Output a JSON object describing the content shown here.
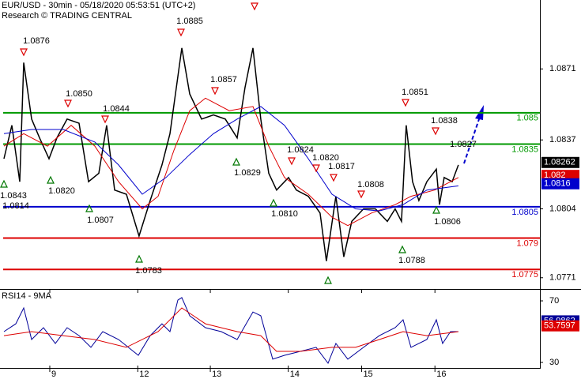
{
  "chart_data": [
    {
      "type": "line",
      "title": "EUR/USD - 30min - 05/18/2020 05:53:51 (UTC+2)",
      "subtitle": "Research © TRADING CENTRAL",
      "xlim": [
        0.355,
        7.35
      ],
      "ylim": [
        1.0766,
        1.0904
      ],
      "yticks": [
        1.0871,
        1.0837,
        1.0804,
        1.0771
      ],
      "series": [
        {
          "color": "#000000",
          "last_value": 1.08262,
          "x": [
            0.406,
            0.509,
            0.611,
            0.662,
            0.765,
            0.867,
            0.99,
            1.092,
            1.225,
            1.379,
            1.502,
            1.635,
            1.737,
            1.84,
            1.993,
            2.157,
            2.301,
            2.454,
            2.557,
            2.711,
            2.813,
            2.967,
            3.12,
            3.274,
            3.427,
            3.529,
            3.632,
            3.734,
            3.837,
            3.939,
            4.093,
            4.195,
            4.349,
            4.502,
            4.584,
            4.707,
            4.809,
            4.912,
            5.065,
            5.219,
            5.373,
            5.475,
            5.557,
            5.618,
            5.7,
            5.782,
            5.885,
            6.008,
            6.049,
            6.11,
            6.213,
            6.294
          ],
          "values": [
            1.0828,
            1.0844,
            1.0817,
            1.0874,
            1.0847,
            1.0838,
            1.0828,
            1.0838,
            1.0847,
            1.0845,
            1.0817,
            1.0821,
            1.0844,
            1.0813,
            1.0811,
            1.0791,
            1.0808,
            1.0825,
            1.084,
            1.0881,
            1.0859,
            1.0847,
            1.0849,
            1.0847,
            1.0838,
            1.0862,
            1.0881,
            1.0847,
            1.0821,
            1.0813,
            1.0819,
            1.0813,
            1.081,
            1.0802,
            1.0779,
            1.081,
            1.0781,
            1.0798,
            1.0804,
            1.0804,
            1.0798,
            1.0804,
            1.0798,
            1.0844,
            1.0817,
            1.0808,
            1.0817,
            1.0823,
            1.0806,
            1.0819,
            1.0817,
            1.0825
          ]
        },
        {
          "color": "#dd0000",
          "last_value": 1.082,
          "x": [
            0.406,
            0.662,
            0.969,
            1.277,
            1.584,
            1.891,
            2.198,
            2.403,
            2.608,
            2.813,
            3.017,
            3.325,
            3.632,
            3.837,
            4.041,
            4.349,
            4.656,
            4.861,
            5.168,
            5.475,
            5.68,
            5.987,
            6.294
          ],
          "values": [
            1.0834,
            1.084,
            1.0834,
            1.0844,
            1.0834,
            1.0817,
            1.0804,
            1.081,
            1.0832,
            1.0851,
            1.0857,
            1.0851,
            1.0853,
            1.0834,
            1.0819,
            1.0811,
            1.08,
            1.0796,
            1.0802,
            1.0806,
            1.081,
            1.0813,
            1.0819
          ]
        },
        {
          "color": "#0000cc",
          "last_value": 1.0816,
          "x": [
            0.406,
            0.765,
            1.174,
            1.584,
            1.891,
            2.198,
            2.506,
            2.813,
            3.12,
            3.427,
            3.734,
            4.041,
            4.349,
            4.656,
            4.963,
            5.27,
            5.577,
            5.885,
            6.294
          ],
          "values": [
            1.084,
            1.0842,
            1.0842,
            1.0836,
            1.0825,
            1.0811,
            1.0819,
            1.083,
            1.084,
            1.0847,
            1.0853,
            1.0844,
            1.0828,
            1.0811,
            1.0804,
            1.0803,
            1.0806,
            1.0813,
            1.0815
          ]
        }
      ],
      "levels": [
        {
          "value": 1.085,
          "color": "#009900"
        },
        {
          "value": 1.0835,
          "color": "#009900"
        },
        {
          "value": 1.0805,
          "color": "#0000cc"
        },
        {
          "value": 1.079,
          "color": "#dd0000"
        },
        {
          "value": 1.0775,
          "color": "#dd0000"
        }
      ],
      "annotations": [
        "1.0876",
        "1.0850",
        "1.0844",
        "1.0885",
        "1.0857",
        "1.0843",
        "1.0820",
        "1.0814",
        "1.0807",
        "1.0783",
        "1.0829",
        "1.0824",
        "1.0810",
        "1.0820",
        "1.0817",
        "1.0808",
        "1.0851",
        "1.0838",
        "1.0827",
        "1.0806",
        "1.0788"
      ]
    },
    {
      "type": "line",
      "title": "RSI14 - 9MA",
      "xlim": [
        0.355,
        7.35
      ],
      "ylim": [
        25.9,
        77.2
      ],
      "yticks": [
        70,
        30
      ],
      "xticks": [
        {
          "value": 1,
          "label": "9"
        },
        {
          "value": 2.14,
          "label": "12"
        },
        {
          "value": 3.08,
          "label": "13"
        },
        {
          "value": 4.09,
          "label": "14"
        },
        {
          "value": 5.04,
          "label": "15"
        },
        {
          "value": 5.99,
          "label": "16"
        }
      ],
      "series": [
        {
          "color": "#000099",
          "last_value": 56.9862,
          "x": [
            0.406,
            0.56,
            0.662,
            0.765,
            0.918,
            1.072,
            1.225,
            1.379,
            1.533,
            1.686,
            1.891,
            2.147,
            2.301,
            2.454,
            2.557,
            2.659,
            2.711,
            2.813,
            3.017,
            3.222,
            3.427,
            3.632,
            3.734,
            3.888,
            4.041,
            4.246,
            4.451,
            4.605,
            4.707,
            4.861,
            5.065,
            5.27,
            5.475,
            5.577,
            5.68,
            5.885,
            6.008,
            6.089,
            6.192,
            6.294
          ],
          "values": [
            50,
            55.1,
            65.4,
            44.9,
            52.6,
            42.3,
            52.6,
            47.4,
            39.8,
            50,
            44.9,
            34.6,
            47.4,
            55.1,
            50,
            70.5,
            72.1,
            60.3,
            52.6,
            50,
            44.9,
            62.8,
            60.3,
            32.1,
            34.6,
            37.2,
            39.8,
            29.5,
            42.3,
            32.1,
            39.8,
            47.4,
            52.6,
            57.7,
            39.8,
            44.9,
            57.7,
            42.3,
            50,
            50
          ]
        },
        {
          "color": "#dd0000",
          "last_value": 53.7597,
          "x": [
            0.406,
            0.765,
            1.174,
            1.584,
            1.993,
            2.403,
            2.711,
            3.017,
            3.427,
            3.734,
            3.939,
            4.246,
            4.656,
            4.963,
            5.27,
            5.577,
            5.885,
            6.294
          ],
          "values": [
            47.4,
            50,
            47.4,
            44.9,
            39.8,
            50,
            65.4,
            55.1,
            50,
            47.4,
            37.2,
            37.2,
            39.8,
            39.8,
            44.9,
            50,
            47.4,
            50
          ]
        }
      ]
    }
  ]
}
